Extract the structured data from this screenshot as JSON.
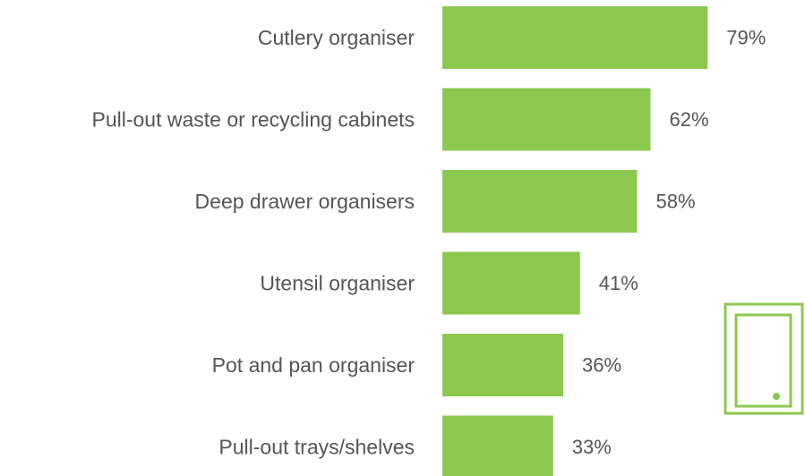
{
  "chart_data": {
    "type": "bar",
    "orientation": "horizontal",
    "title": "",
    "xlabel": "",
    "ylabel": "",
    "categories": [
      "Cutlery organiser",
      "Pull-out waste or recycling cabinets",
      "Deep drawer organisers",
      "Utensil organiser",
      "Pot and pan organiser",
      "Pull-out trays/shelves"
    ],
    "values": [
      79,
      62,
      58,
      41,
      36,
      33
    ],
    "value_labels": [
      "79%",
      "62%",
      "58%",
      "41%",
      "36%",
      "33%"
    ],
    "unit": "%",
    "xlim": [
      0,
      100
    ],
    "grid": false,
    "legend": "none",
    "bar_color": "#8cc850",
    "text_color": "#555555"
  },
  "decoration": {
    "icon": "cabinet-door-icon",
    "icon_color": "#8cc850"
  }
}
